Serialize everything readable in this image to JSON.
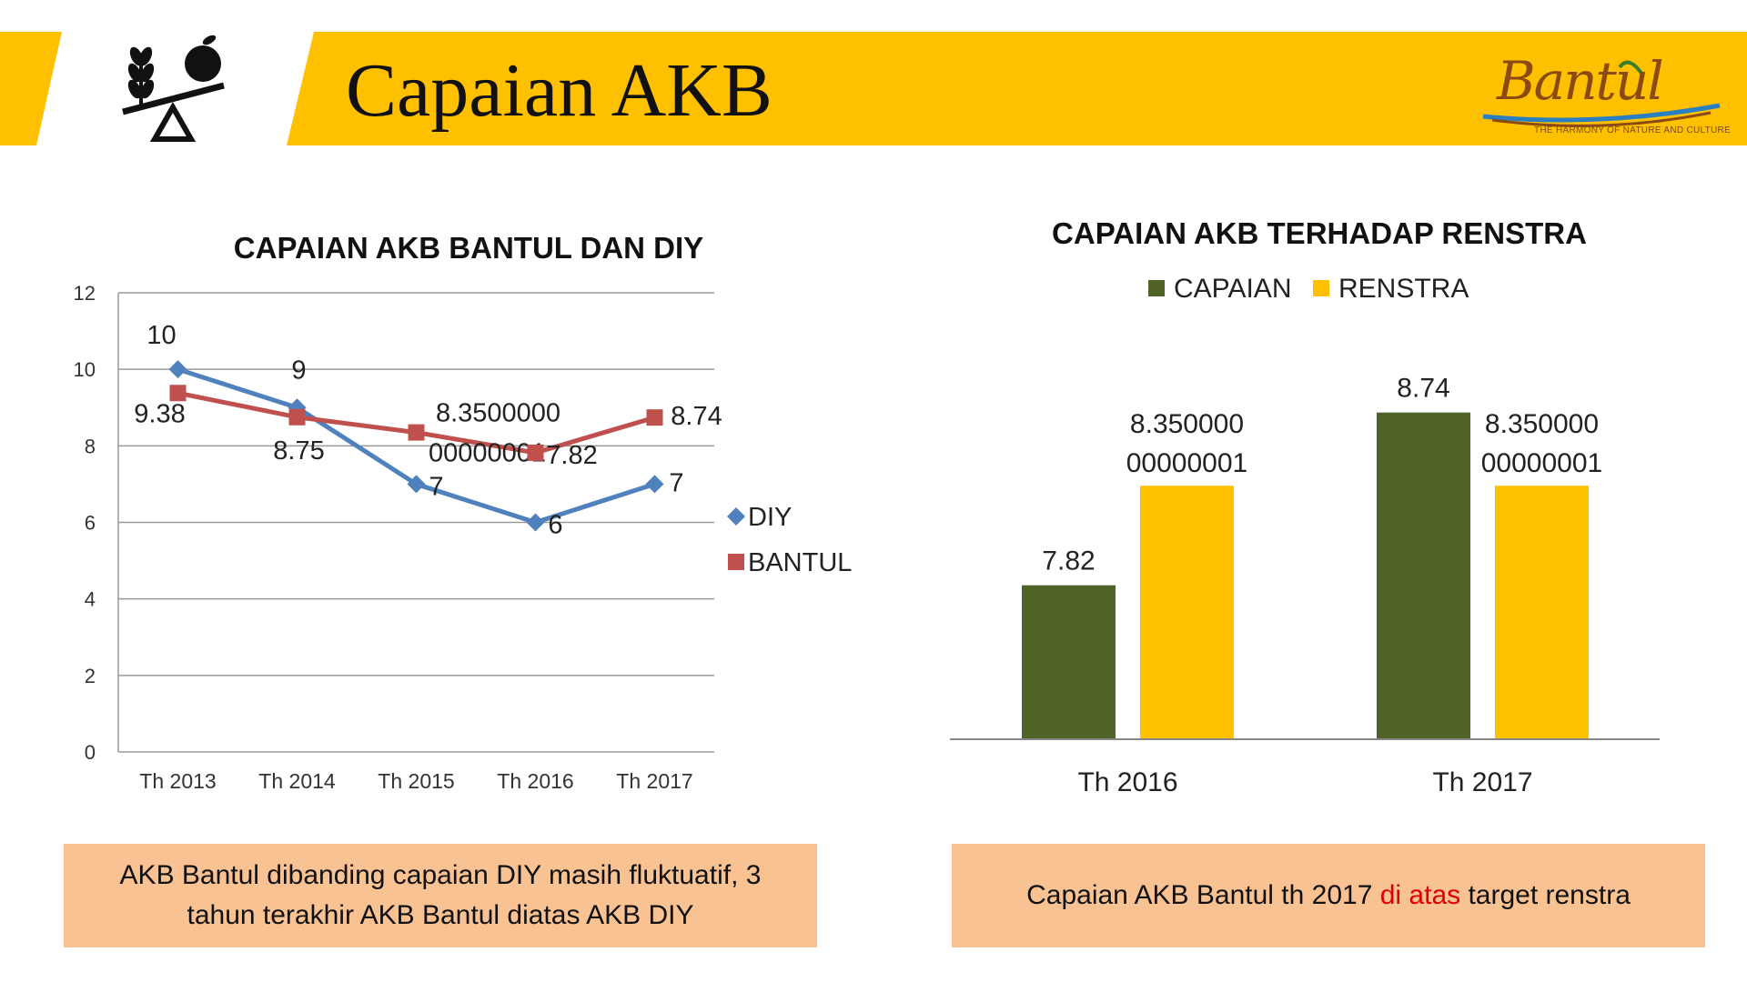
{
  "page": {
    "title": "Capaian AKB"
  },
  "logo": {
    "text": "Bantul",
    "tagline": "THE HARMONY OF NATURE AND CULTURE"
  },
  "colors": {
    "banner": "#ffc000",
    "diy": "#4f81bd",
    "bantul": "#c0504d",
    "capaian": "#4f6228",
    "renstra": "#ffc000",
    "note_bg": "#f9c293",
    "highlight": "#e00000"
  },
  "chart_data": [
    {
      "type": "line",
      "title": "CAPAIAN AKB BANTUL DAN DIY",
      "categories": [
        "Th 2013",
        "Th 2014",
        "Th 2015",
        "Th 2016",
        "Th 2017"
      ],
      "series": [
        {
          "name": "DIY",
          "values": [
            10,
            9,
            7,
            6,
            7
          ],
          "labels": [
            "10",
            "9",
            "7",
            "6",
            "7"
          ]
        },
        {
          "name": "BANTUL",
          "values": [
            9.38,
            8.75,
            8.35,
            7.82,
            8.74
          ],
          "labels": [
            "9.38",
            "8.75",
            "8.3500000 00000001",
            "7.82",
            "8.74"
          ]
        }
      ],
      "ylim": [
        0,
        12
      ],
      "yticks": [
        "0",
        "2",
        "4",
        "6",
        "8",
        "10",
        "12"
      ],
      "grid": true,
      "legend": "right"
    },
    {
      "type": "bar",
      "title": "CAPAIAN AKB TERHADAP RENSTRA",
      "categories": [
        "Th 2016",
        "Th 2017"
      ],
      "series": [
        {
          "name": "CAPAIAN",
          "values": [
            7.82,
            8.74
          ],
          "labels": [
            "7.82",
            "8.74"
          ]
        },
        {
          "name": "RENSTRA",
          "values": [
            8.35,
            8.35
          ],
          "labels": [
            "8.350000 00000001",
            "8.350000 00000001"
          ]
        }
      ],
      "ylim": [
        7.0,
        9.0
      ],
      "legend": "top"
    }
  ],
  "notes": {
    "left": "AKB Bantul dibanding capaian DIY masih fluktuatif, 3 tahun terakhir AKB Bantul diatas AKB DIY",
    "right_before": "Capaian AKB Bantul th 2017 ",
    "right_highlight": "di atas",
    "right_after": " target renstra"
  }
}
